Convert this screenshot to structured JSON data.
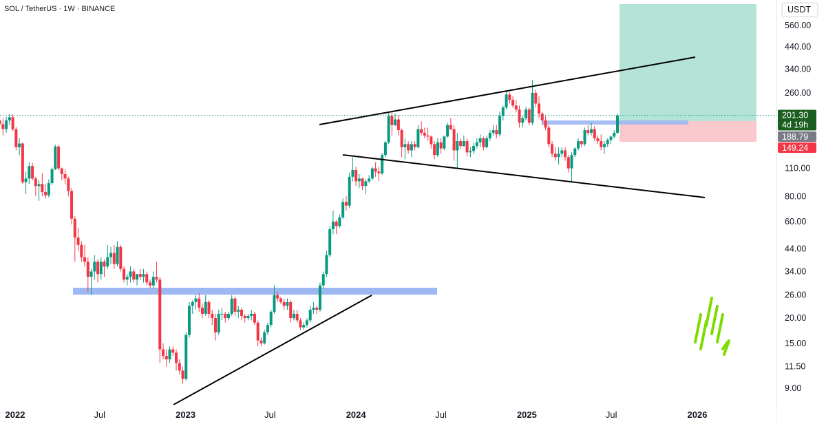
{
  "header": {
    "title": "SOL / TetherUS · 1W · BINANCE"
  },
  "axis": {
    "currency": "USDT"
  },
  "chart_data": {
    "type": "candlestick",
    "symbol": "SOL / TetherUS",
    "interval": "1W",
    "exchange": "BINANCE",
    "scale": "log",
    "y_ticks": [
      560,
      440,
      340,
      260,
      110,
      80,
      60,
      44,
      34,
      26,
      20,
      15,
      11.5,
      9
    ],
    "y_tick_labels": [
      "560.00",
      "440.00",
      "340.00",
      "260.00",
      "110.00",
      "80.00",
      "60.00",
      "44.00",
      "34.00",
      "26.00",
      "20.00",
      "15.00",
      "11.50",
      "9.00"
    ],
    "x_ticks": [
      {
        "label": "2022",
        "date": "2022-01-01",
        "year": true
      },
      {
        "label": "Jul",
        "date": "2022-07-01",
        "year": false
      },
      {
        "label": "2023",
        "date": "2023-01-01",
        "year": true
      },
      {
        "label": "Jul",
        "date": "2023-07-01",
        "year": false
      },
      {
        "label": "2024",
        "date": "2024-01-01",
        "year": true
      },
      {
        "label": "Jul",
        "date": "2024-07-01",
        "year": false
      },
      {
        "label": "2025",
        "date": "2025-01-01",
        "year": true
      },
      {
        "label": "Jul",
        "date": "2025-07-01",
        "year": false
      },
      {
        "label": "2026",
        "date": "2026-01-01",
        "year": true
      }
    ],
    "price_tags": [
      {
        "label": "201.30",
        "sub": "4d 19h",
        "value": 201.3,
        "color": "#1b5e20"
      },
      {
        "label": "188.79",
        "value": 188.79,
        "color": "#787b86"
      },
      {
        "label": "149.24",
        "value": 149.24,
        "color": "#f23645"
      }
    ],
    "last_price": 201.3,
    "candles": [
      [
        "2021-11-29",
        190,
        205,
        178,
        182
      ],
      [
        "2021-12-06",
        182,
        195,
        160,
        172
      ],
      [
        "2021-12-13",
        172,
        198,
        165,
        190
      ],
      [
        "2021-12-20",
        190,
        205,
        180,
        197
      ],
      [
        "2021-12-27",
        197,
        204,
        168,
        172
      ],
      [
        "2022-01-03",
        172,
        176,
        135,
        140
      ],
      [
        "2022-01-10",
        140,
        155,
        128,
        146
      ],
      [
        "2022-01-17",
        146,
        148,
        92,
        94
      ],
      [
        "2022-01-24",
        94,
        106,
        82,
        98
      ],
      [
        "2022-01-31",
        98,
        118,
        92,
        113
      ],
      [
        "2022-02-07",
        113,
        117,
        96,
        98
      ],
      [
        "2022-02-14",
        98,
        100,
        80,
        90
      ],
      [
        "2022-02-21",
        90,
        96,
        76,
        92
      ],
      [
        "2022-02-28",
        92,
        104,
        80,
        84
      ],
      [
        "2022-03-07",
        84,
        92,
        78,
        81
      ],
      [
        "2022-03-14",
        81,
        97,
        79,
        93
      ],
      [
        "2022-03-21",
        93,
        111,
        91,
        109
      ],
      [
        "2022-03-28",
        109,
        144,
        108,
        141
      ],
      [
        "2022-04-04",
        141,
        143,
        108,
        110
      ],
      [
        "2022-04-11",
        110,
        111,
        96,
        103
      ],
      [
        "2022-04-18",
        103,
        109,
        92,
        98
      ],
      [
        "2022-04-25",
        98,
        100,
        80,
        85
      ],
      [
        "2022-05-02",
        85,
        88,
        58,
        62
      ],
      [
        "2022-05-09",
        62,
        64,
        38,
        50
      ],
      [
        "2022-05-16",
        50,
        56,
        43,
        46
      ],
      [
        "2022-05-23",
        46,
        48,
        38,
        40
      ],
      [
        "2022-05-30",
        40,
        46,
        36,
        38
      ],
      [
        "2022-06-06",
        38,
        40,
        27,
        32
      ],
      [
        "2022-06-13",
        32,
        35,
        26,
        34
      ],
      [
        "2022-06-20",
        34,
        41,
        31,
        38
      ],
      [
        "2022-06-27",
        38,
        39,
        30,
        33
      ],
      [
        "2022-07-04",
        33,
        40,
        31,
        38
      ],
      [
        "2022-07-11",
        38,
        39,
        32,
        36
      ],
      [
        "2022-07-18",
        36,
        46,
        35,
        40
      ],
      [
        "2022-07-25",
        40,
        45,
        37,
        42
      ],
      [
        "2022-08-01",
        42,
        46,
        35,
        37
      ],
      [
        "2022-08-08",
        37,
        48,
        36,
        45
      ],
      [
        "2022-08-15",
        45,
        46,
        34,
        35
      ],
      [
        "2022-08-22",
        35,
        36,
        30,
        31
      ],
      [
        "2022-08-29",
        31,
        33,
        29,
        32
      ],
      [
        "2022-09-05",
        32,
        36,
        30,
        34
      ],
      [
        "2022-09-12",
        34,
        35,
        30,
        31
      ],
      [
        "2022-09-19",
        31,
        33,
        29,
        33
      ],
      [
        "2022-09-26",
        33,
        35,
        31,
        32
      ],
      [
        "2022-10-03",
        32,
        35,
        30,
        33
      ],
      [
        "2022-10-10",
        33,
        34,
        29,
        30
      ],
      [
        "2022-10-17",
        30,
        31,
        28,
        29
      ],
      [
        "2022-10-24",
        29,
        34,
        28,
        32
      ],
      [
        "2022-10-31",
        32,
        38,
        30,
        31
      ],
      [
        "2022-11-07",
        31,
        32,
        12,
        14
      ],
      [
        "2022-11-14",
        14,
        15,
        12.5,
        13
      ],
      [
        "2022-11-21",
        13,
        14,
        11.5,
        12.5
      ],
      [
        "2022-11-28",
        12.5,
        14.5,
        12,
        14
      ],
      [
        "2022-12-05",
        14,
        14.5,
        13,
        13.5
      ],
      [
        "2022-12-12",
        13.5,
        14,
        11,
        12
      ],
      [
        "2022-12-19",
        12,
        12.5,
        10.5,
        11
      ],
      [
        "2022-12-26",
        11,
        11.5,
        9.5,
        10
      ],
      [
        "2023-01-02",
        10,
        17,
        9.8,
        16.5
      ],
      [
        "2023-01-09",
        16.5,
        24,
        16,
        23
      ],
      [
        "2023-01-16",
        23,
        24.5,
        21,
        24
      ],
      [
        "2023-01-23",
        24,
        26,
        22,
        25
      ],
      [
        "2023-01-30",
        25,
        26.5,
        21.5,
        22.5
      ],
      [
        "2023-02-06",
        22.5,
        23.5,
        20,
        21
      ],
      [
        "2023-02-13",
        21,
        26,
        20.5,
        24
      ],
      [
        "2023-02-20",
        24,
        24.5,
        20,
        21
      ],
      [
        "2023-02-27",
        21,
        22,
        18.5,
        20
      ],
      [
        "2023-03-06",
        20,
        21,
        15.5,
        17
      ],
      [
        "2023-03-13",
        17,
        22,
        16.5,
        21
      ],
      [
        "2023-03-20",
        21,
        22.5,
        19.5,
        21
      ],
      [
        "2023-03-27",
        21,
        21.5,
        19,
        20
      ],
      [
        "2023-04-03",
        20,
        21.5,
        19.5,
        21
      ],
      [
        "2023-04-10",
        21,
        26,
        20.5,
        25
      ],
      [
        "2023-04-17",
        25,
        25.5,
        20.5,
        21.5
      ],
      [
        "2023-04-24",
        21.5,
        23,
        20,
        22
      ],
      [
        "2023-05-01",
        22,
        22.5,
        19.5,
        20.5
      ],
      [
        "2023-05-08",
        20.5,
        21,
        19,
        20
      ],
      [
        "2023-05-15",
        20,
        21,
        19.5,
        20.5
      ],
      [
        "2023-05-22",
        20.5,
        22,
        19.5,
        21
      ],
      [
        "2023-05-29",
        21,
        21.5,
        18.5,
        19
      ],
      [
        "2023-06-05",
        19,
        19.5,
        14.5,
        15.5
      ],
      [
        "2023-06-12",
        15.5,
        16,
        14.5,
        15
      ],
      [
        "2023-06-19",
        15,
        17.5,
        14.8,
        17
      ],
      [
        "2023-06-26",
        17,
        19,
        16.5,
        18.5
      ],
      [
        "2023-07-03",
        18.5,
        22,
        18,
        21.5
      ],
      [
        "2023-07-10",
        21.5,
        29,
        21,
        26
      ],
      [
        "2023-07-17",
        26,
        27,
        24,
        25
      ],
      [
        "2023-07-24",
        25,
        25.5,
        23.5,
        24
      ],
      [
        "2023-07-31",
        24,
        25,
        22,
        23
      ],
      [
        "2023-08-07",
        23,
        25,
        22,
        24
      ],
      [
        "2023-08-14",
        24,
        24.5,
        19,
        20
      ],
      [
        "2023-08-21",
        20,
        22,
        19.5,
        21
      ],
      [
        "2023-08-28",
        21,
        22,
        19,
        19.5
      ],
      [
        "2023-09-04",
        19.5,
        20,
        17.5,
        18
      ],
      [
        "2023-09-11",
        18,
        19,
        17.5,
        18.5
      ],
      [
        "2023-09-18",
        18.5,
        20,
        18,
        19.5
      ],
      [
        "2023-09-25",
        19.5,
        23,
        19,
        22
      ],
      [
        "2023-10-02",
        22,
        24,
        21,
        22.5
      ],
      [
        "2023-10-09",
        22.5,
        23,
        21,
        22
      ],
      [
        "2023-10-16",
        22,
        30,
        21.5,
        29
      ],
      [
        "2023-10-23",
        29,
        34,
        28,
        33
      ],
      [
        "2023-10-30",
        33,
        43,
        32,
        41
      ],
      [
        "2023-11-06",
        41,
        57,
        40,
        55
      ],
      [
        "2023-11-13",
        55,
        68,
        52,
        60
      ],
      [
        "2023-11-20",
        60,
        61,
        52,
        57
      ],
      [
        "2023-11-27",
        57,
        65,
        56,
        63
      ],
      [
        "2023-12-04",
        63,
        78,
        62,
        75
      ],
      [
        "2023-12-11",
        75,
        80,
        68,
        72
      ],
      [
        "2023-12-18",
        72,
        105,
        70,
        100
      ],
      [
        "2023-12-25",
        100,
        125,
        95,
        108
      ],
      [
        "2024-01-01",
        108,
        112,
        90,
        95
      ],
      [
        "2024-01-08",
        95,
        103,
        88,
        98
      ],
      [
        "2024-01-15",
        98,
        99,
        86,
        90
      ],
      [
        "2024-01-22",
        90,
        97,
        82,
        95
      ],
      [
        "2024-01-29",
        95,
        102,
        93,
        98
      ],
      [
        "2024-02-05",
        98,
        112,
        96,
        110
      ],
      [
        "2024-02-12",
        110,
        118,
        100,
        106
      ],
      [
        "2024-02-19",
        106,
        112,
        95,
        104
      ],
      [
        "2024-02-26",
        104,
        131,
        102,
        128
      ],
      [
        "2024-03-04",
        128,
        150,
        125,
        148
      ],
      [
        "2024-03-11",
        148,
        210,
        145,
        200
      ],
      [
        "2024-03-18",
        200,
        210,
        160,
        180
      ],
      [
        "2024-03-25",
        180,
        205,
        178,
        192
      ],
      [
        "2024-04-01",
        192,
        202,
        160,
        170
      ],
      [
        "2024-04-08",
        170,
        173,
        125,
        140
      ],
      [
        "2024-04-15",
        140,
        155,
        122,
        145
      ],
      [
        "2024-04-22",
        145,
        150,
        130,
        135
      ],
      [
        "2024-04-29",
        135,
        150,
        125,
        145
      ],
      [
        "2024-05-06",
        145,
        150,
        135,
        140
      ],
      [
        "2024-05-13",
        140,
        180,
        138,
        172
      ],
      [
        "2024-05-20",
        172,
        188,
        160,
        165
      ],
      [
        "2024-05-27",
        165,
        175,
        155,
        160
      ],
      [
        "2024-06-03",
        160,
        175,
        150,
        158
      ],
      [
        "2024-06-10",
        158,
        160,
        138,
        145
      ],
      [
        "2024-06-17",
        145,
        150,
        122,
        128
      ],
      [
        "2024-06-24",
        128,
        155,
        125,
        148
      ],
      [
        "2024-07-01",
        148,
        155,
        130,
        138
      ],
      [
        "2024-07-08",
        138,
        160,
        135,
        158
      ],
      [
        "2024-07-15",
        158,
        185,
        156,
        180
      ],
      [
        "2024-07-22",
        180,
        195,
        170,
        172
      ],
      [
        "2024-07-29",
        172,
        180,
        120,
        135
      ],
      [
        "2024-08-05",
        135,
        165,
        110,
        150
      ],
      [
        "2024-08-12",
        150,
        155,
        138,
        142
      ],
      [
        "2024-08-19",
        142,
        160,
        140,
        150
      ],
      [
        "2024-08-26",
        150,
        155,
        126,
        132
      ],
      [
        "2024-09-02",
        132,
        140,
        125,
        134
      ],
      [
        "2024-09-09",
        134,
        148,
        130,
        142
      ],
      [
        "2024-09-16",
        142,
        155,
        138,
        148
      ],
      [
        "2024-09-23",
        148,
        162,
        140,
        155
      ],
      [
        "2024-09-30",
        155,
        158,
        135,
        140
      ],
      [
        "2024-10-07",
        140,
        160,
        138,
        155
      ],
      [
        "2024-10-14",
        155,
        170,
        150,
        165
      ],
      [
        "2024-10-21",
        165,
        180,
        160,
        170
      ],
      [
        "2024-10-28",
        170,
        180,
        155,
        162
      ],
      [
        "2024-11-04",
        162,
        210,
        158,
        200
      ],
      [
        "2024-11-11",
        200,
        225,
        190,
        220
      ],
      [
        "2024-11-18",
        220,
        265,
        215,
        255
      ],
      [
        "2024-11-25",
        255,
        262,
        230,
        240
      ],
      [
        "2024-12-02",
        240,
        250,
        220,
        225
      ],
      [
        "2024-12-09",
        225,
        240,
        208,
        215
      ],
      [
        "2024-12-16",
        215,
        225,
        175,
        185
      ],
      [
        "2024-12-23",
        185,
        200,
        175,
        195
      ],
      [
        "2024-12-30",
        195,
        222,
        190,
        215
      ],
      [
        "2025-01-06",
        215,
        220,
        180,
        185
      ],
      [
        "2025-01-13",
        185,
        300,
        180,
        260
      ],
      [
        "2025-01-20",
        260,
        270,
        220,
        230
      ],
      [
        "2025-01-27",
        230,
        250,
        195,
        205
      ],
      [
        "2025-02-03",
        205,
        210,
        180,
        190
      ],
      [
        "2025-02-10",
        190,
        200,
        170,
        175
      ],
      [
        "2025-02-17",
        175,
        180,
        140,
        145
      ],
      [
        "2025-02-24",
        145,
        150,
        125,
        130
      ],
      [
        "2025-03-03",
        130,
        140,
        120,
        125
      ],
      [
        "2025-03-10",
        125,
        140,
        115,
        130
      ],
      [
        "2025-03-17",
        130,
        140,
        125,
        135
      ],
      [
        "2025-03-24",
        135,
        140,
        120,
        125
      ],
      [
        "2025-03-31",
        125,
        128,
        105,
        110
      ],
      [
        "2025-04-07",
        110,
        132,
        95,
        128
      ],
      [
        "2025-04-14",
        128,
        140,
        125,
        138
      ],
      [
        "2025-04-21",
        138,
        155,
        135,
        150
      ],
      [
        "2025-04-28",
        150,
        150,
        140,
        145
      ],
      [
        "2025-05-05",
        145,
        175,
        142,
        170
      ],
      [
        "2025-05-12",
        170,
        180,
        160,
        165
      ],
      [
        "2025-05-19",
        165,
        185,
        160,
        172
      ],
      [
        "2025-05-26",
        172,
        178,
        150,
        155
      ],
      [
        "2025-06-02",
        155,
        160,
        145,
        150
      ],
      [
        "2025-06-09",
        150,
        162,
        135,
        140
      ],
      [
        "2025-06-16",
        140,
        150,
        130,
        145
      ],
      [
        "2025-06-23",
        145,
        155,
        140,
        152
      ],
      [
        "2025-06-30",
        152,
        160,
        145,
        158
      ],
      [
        "2025-07-07",
        158,
        170,
        155,
        165
      ],
      [
        "2025-07-14",
        165,
        205,
        163,
        201.3
      ]
    ]
  },
  "colors": {
    "up": "#089981",
    "down": "#f23645",
    "zone": "#9db8f3",
    "target": "#b4e3d7",
    "stop": "#fbc8cd",
    "trend": "#000000",
    "watermark": "#7ddb00",
    "last_line": "#26a69a"
  }
}
